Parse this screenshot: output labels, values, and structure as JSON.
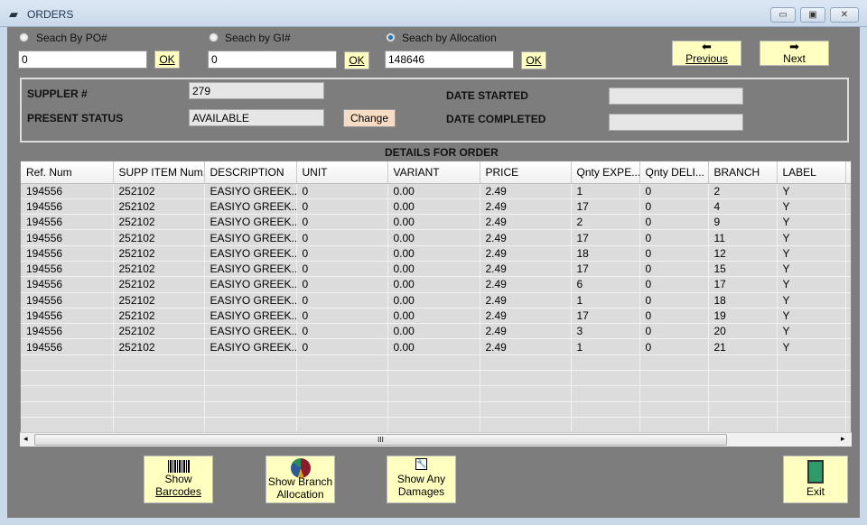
{
  "window": {
    "title": "ORDERS",
    "minimize": "▭",
    "maximize": "▣",
    "close": "✕"
  },
  "search": {
    "po": {
      "label": "Seach By PO#",
      "value": "0",
      "ok": "OK",
      "selected": false
    },
    "gi": {
      "label": "Seach by GI#",
      "value": "0",
      "ok": "OK",
      "selected": false
    },
    "allocation": {
      "label": "Seach by Allocation",
      "value": "148646",
      "ok": "OK",
      "selected": true
    }
  },
  "nav": {
    "previous": "Previous",
    "next": "Next"
  },
  "info": {
    "supplier_label": "SUPPLER #",
    "supplier_value": "279",
    "status_label": "PRESENT STATUS",
    "status_value": "AVAILABLE",
    "change": "Change",
    "date_started_label": "DATE STARTED",
    "date_started_value": "",
    "date_completed_label": "DATE COMPLETED",
    "date_completed_value": ""
  },
  "details_title": "DETAILS FOR ORDER",
  "table": {
    "columns": [
      "Ref. Num",
      "SUPP ITEM Num.",
      "DESCRIPTION",
      "UNIT",
      "VARIANT",
      "PRICE",
      "Qnty EXPE...",
      "Qnty DELI...",
      "BRANCH",
      "LABEL",
      ""
    ],
    "rows": [
      [
        "194556",
        "252102",
        "EASIYO GREEK...",
        "0",
        "0.00",
        "2.49",
        "1",
        "0",
        "2",
        "Y"
      ],
      [
        "194556",
        "252102",
        "EASIYO GREEK...",
        "0",
        "0.00",
        "2.49",
        "17",
        "0",
        "4",
        "Y"
      ],
      [
        "194556",
        "252102",
        "EASIYO GREEK...",
        "0",
        "0.00",
        "2.49",
        "2",
        "0",
        "9",
        "Y"
      ],
      [
        "194556",
        "252102",
        "EASIYO GREEK...",
        "0",
        "0.00",
        "2.49",
        "17",
        "0",
        "11",
        "Y"
      ],
      [
        "194556",
        "252102",
        "EASIYO GREEK...",
        "0",
        "0.00",
        "2.49",
        "18",
        "0",
        "12",
        "Y"
      ],
      [
        "194556",
        "252102",
        "EASIYO GREEK...",
        "0",
        "0.00",
        "2.49",
        "17",
        "0",
        "15",
        "Y"
      ],
      [
        "194556",
        "252102",
        "EASIYO GREEK...",
        "0",
        "0.00",
        "2.49",
        "6",
        "0",
        "17",
        "Y"
      ],
      [
        "194556",
        "252102",
        "EASIYO GREEK...",
        "0",
        "0.00",
        "2.49",
        "1",
        "0",
        "18",
        "Y"
      ],
      [
        "194556",
        "252102",
        "EASIYO GREEK...",
        "0",
        "0.00",
        "2.49",
        "17",
        "0",
        "19",
        "Y"
      ],
      [
        "194556",
        "252102",
        "EASIYO GREEK...",
        "0",
        "0.00",
        "2.49",
        "3",
        "0",
        "20",
        "Y"
      ],
      [
        "194556",
        "252102",
        "EASIYO GREEK...",
        "0",
        "0.00",
        "2.49",
        "1",
        "0",
        "21",
        "Y"
      ]
    ],
    "scroll_grip": "III"
  },
  "buttons": {
    "barcodes": [
      "Show",
      "Barcodes"
    ],
    "branch": [
      "Show Branch",
      "Allocation"
    ],
    "damages": [
      "Show Any",
      "Damages"
    ],
    "exit": "Exit"
  }
}
